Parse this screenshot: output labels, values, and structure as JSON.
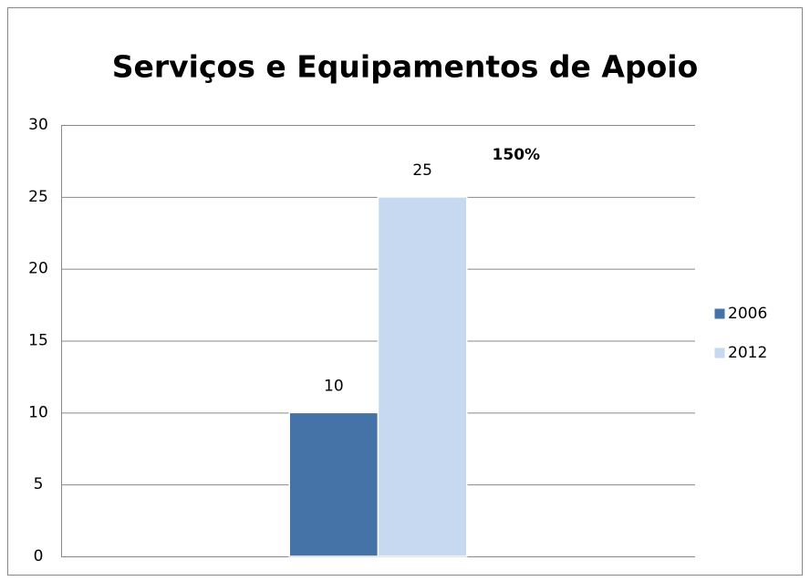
{
  "chart_data": {
    "type": "bar",
    "title": "Serviços e Equipamentos de Apoio",
    "categories": [
      null
    ],
    "series": [
      {
        "name": "2006",
        "color": "#4572a7",
        "values": [
          10
        ]
      },
      {
        "name": "2012",
        "color": "#c6d9f1",
        "values": [
          25
        ]
      }
    ],
    "annotation": "150%",
    "ylim": [
      0,
      30
    ],
    "yticks": [
      0,
      5,
      10,
      15,
      20,
      25,
      30
    ],
    "grid": true,
    "legend": "right"
  }
}
